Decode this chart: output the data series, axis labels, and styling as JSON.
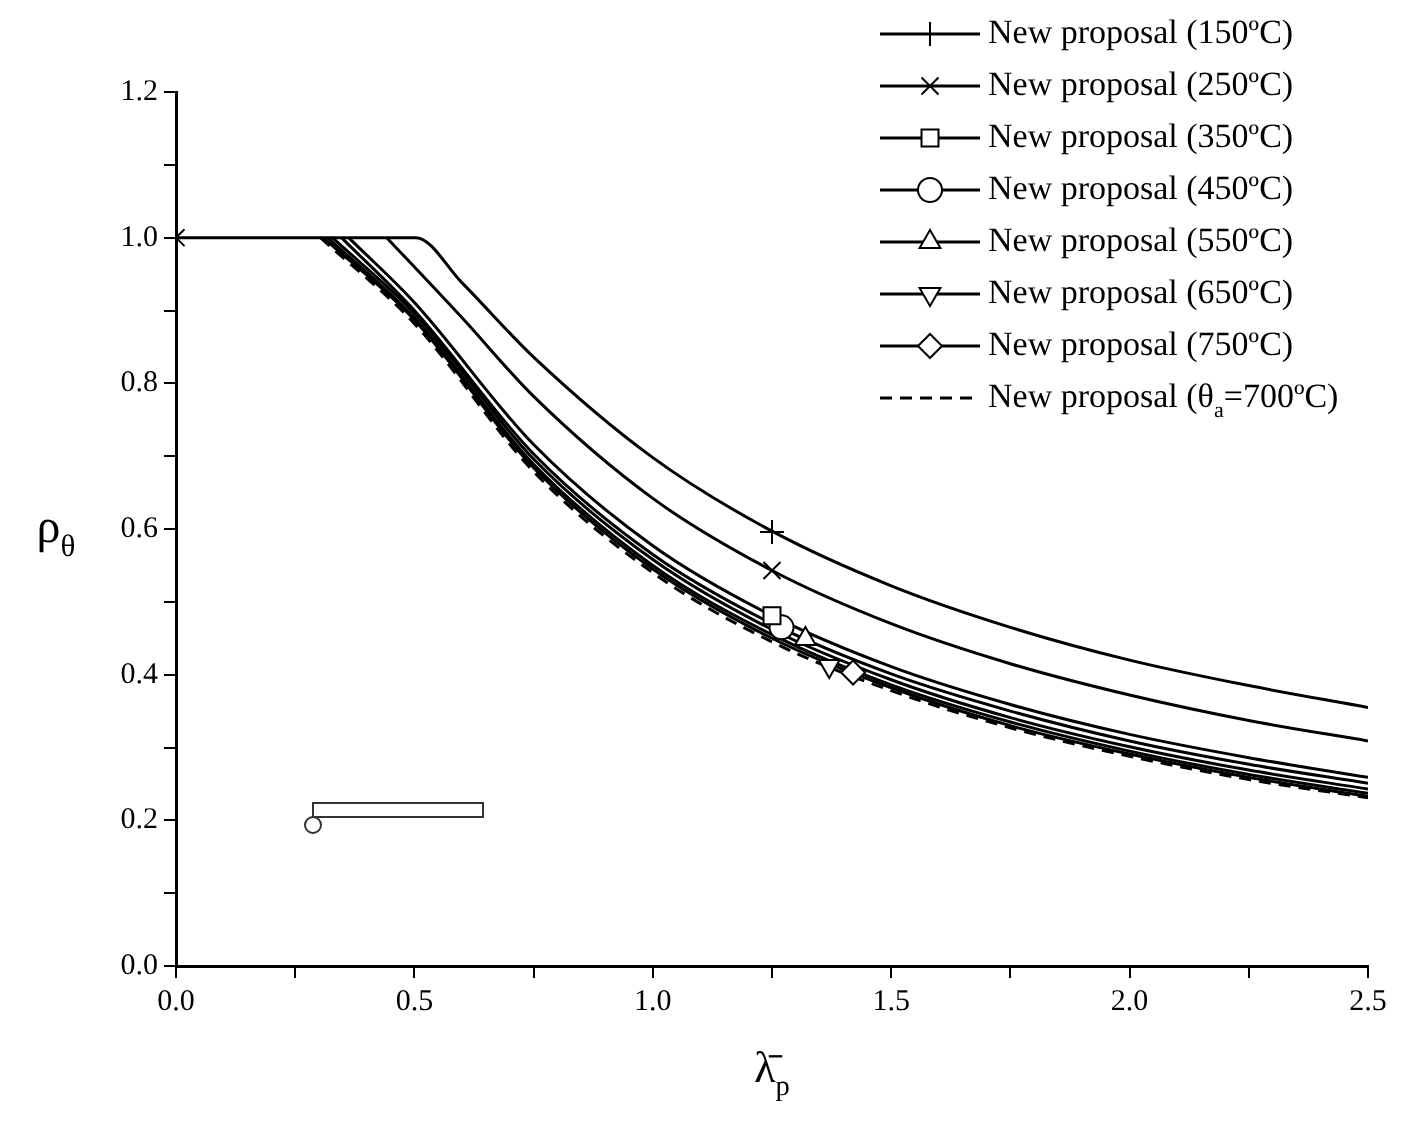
{
  "chart_data": {
    "type": "line",
    "xlabel": "λ̄$_{p}$",
    "ylabel": "ρ$_{θ}$",
    "xlim": [
      0,
      2.5
    ],
    "ylim": [
      0,
      1.2
    ],
    "grid": false,
    "legend": "top right",
    "xticks": [
      {
        "value": 0,
        "label": "0.0"
      },
      {
        "value": 0.25,
        "label": null
      },
      {
        "value": 0.5,
        "label": "0.5"
      },
      {
        "value": 0.75,
        "label": null
      },
      {
        "value": 1,
        "label": "1.0"
      },
      {
        "value": 1.25,
        "label": null
      },
      {
        "value": 1.5,
        "label": "1.5"
      },
      {
        "value": 1.75,
        "label": null
      },
      {
        "value": 2,
        "label": "2.0"
      },
      {
        "value": 2.25,
        "label": null
      },
      {
        "value": 2.5,
        "label": "2.5"
      }
    ],
    "yticks": [
      {
        "value": 0,
        "label": "0.0"
      },
      {
        "value": 0.1,
        "label": null
      },
      {
        "value": 0.2,
        "label": "0.2"
      },
      {
        "value": 0.3,
        "label": null
      },
      {
        "value": 0.4,
        "label": "0.4"
      },
      {
        "value": 0.5,
        "label": null
      },
      {
        "value": 0.6,
        "label": "0.6"
      },
      {
        "value": 0.7,
        "label": null
      },
      {
        "value": 0.8,
        "label": "0.8"
      },
      {
        "value": 0.9,
        "label": null
      },
      {
        "value": 1,
        "label": "1.0"
      },
      {
        "value": 1.1,
        "label": null
      },
      {
        "value": 1.2,
        "label": "1.2"
      }
    ],
    "series": [
      {
        "type": "scatter",
        "name": "New proposal (150ºC)",
        "color": "#000000",
        "marker": "plus",
        "x": [
          1.25
        ],
        "values": [
          0.596
        ]
      },
      {
        "type": "scatter",
        "name": "New proposal (250ºC)",
        "color": "#000000",
        "marker": "x",
        "x": [
          0,
          1.25
        ],
        "values": [
          1,
          0.543
        ]
      },
      {
        "type": "scatter",
        "name": "New proposal (350ºC)",
        "color": "#000000",
        "marker": "square",
        "x": [
          1.25
        ],
        "values": [
          0.481
        ]
      },
      {
        "type": "scatter",
        "name": "New proposal (450ºC)",
        "color": "#000000",
        "marker": "circle",
        "x": [
          1.27
        ],
        "values": [
          0.465
        ]
      },
      {
        "type": "scatter",
        "name": "New proposal (550ºC)",
        "color": "#000000",
        "marker": "triangle",
        "x": [
          1.32
        ],
        "values": [
          0.449
        ]
      },
      {
        "type": "scatter",
        "name": "New proposal (650ºC)",
        "color": "#000000",
        "marker": "triangle_down",
        "x": [
          1.37
        ],
        "values": [
          0.412
        ]
      },
      {
        "type": "scatter",
        "name": "New proposal (750ºC)",
        "color": "#000000",
        "marker": "diamond",
        "x": [
          1.42
        ],
        "values": [
          0.403
        ]
      },
      {
        "name": "New proposal (θ$_{a}$=700ºC)",
        "color": "#000000",
        "line_style": "dashed",
        "x": [
          0.303,
          0.5,
          0.75,
          1,
          1.25,
          1.5,
          1.75,
          2,
          2.25,
          2.5
        ],
        "values": [
          1,
          0.882,
          0.679,
          0.54,
          0.445,
          0.378,
          0.327,
          0.288,
          0.256,
          0.231
        ]
      },
      {
        "color": "#000000",
        "line_style": "solid",
        "x": [
          0,
          0.503,
          0.6,
          0.75,
          1,
          1.25,
          1.5,
          1.75,
          2,
          2.25,
          2.5
        ],
        "values": [
          1,
          1,
          0.938,
          0.836,
          0.698,
          0.597,
          0.522,
          0.465,
          0.42,
          0.385,
          0.355
        ]
      },
      {
        "color": "#000000",
        "line_style": "solid",
        "x": [
          0.442,
          0.6,
          0.75,
          1,
          1.25,
          1.5,
          1.75,
          2,
          2.25,
          2.5
        ],
        "values": [
          1,
          0.89,
          0.782,
          0.642,
          0.543,
          0.47,
          0.415,
          0.372,
          0.337,
          0.309
        ]
      },
      {
        "color": "#000000",
        "line_style": "solid",
        "x": [
          0.362,
          0.5,
          0.75,
          1,
          1.25,
          1.5,
          1.75,
          2,
          2.25,
          2.5
        ],
        "values": [
          1,
          0.911,
          0.716,
          0.577,
          0.481,
          0.411,
          0.359,
          0.318,
          0.286,
          0.259
        ]
      },
      {
        "color": "#000000",
        "line_style": "solid",
        "x": [
          0.347,
          0.5,
          0.75,
          1,
          1.25,
          1.5,
          1.75,
          2,
          2.25,
          2.5
        ],
        "values": [
          1,
          0.9,
          0.703,
          0.565,
          0.47,
          0.401,
          0.35,
          0.309,
          0.277,
          0.251
        ]
      },
      {
        "color": "#000000",
        "line_style": "solid",
        "x": [
          0.328,
          0.5,
          0.75,
          1,
          1.25,
          1.5,
          1.75,
          2,
          2.25,
          2.5
        ],
        "values": [
          1,
          0.896,
          0.696,
          0.558,
          0.462,
          0.393,
          0.341,
          0.301,
          0.269,
          0.243
        ]
      },
      {
        "color": "#000000",
        "line_style": "solid",
        "x": [
          0.318,
          0.5,
          0.75,
          1,
          1.25,
          1.5,
          1.75,
          2,
          2.25,
          2.5
        ],
        "values": [
          1,
          0.89,
          0.689,
          0.55,
          0.455,
          0.386,
          0.335,
          0.295,
          0.263,
          0.237
        ]
      },
      {
        "color": "#000000",
        "line_style": "solid",
        "x": [
          0.309,
          0.5,
          0.75,
          1,
          1.25,
          1.5,
          1.75,
          2,
          2.25,
          2.5
        ],
        "values": [
          1,
          0.887,
          0.684,
          0.545,
          0.45,
          0.382,
          0.33,
          0.291,
          0.259,
          0.233
        ]
      }
    ]
  }
}
